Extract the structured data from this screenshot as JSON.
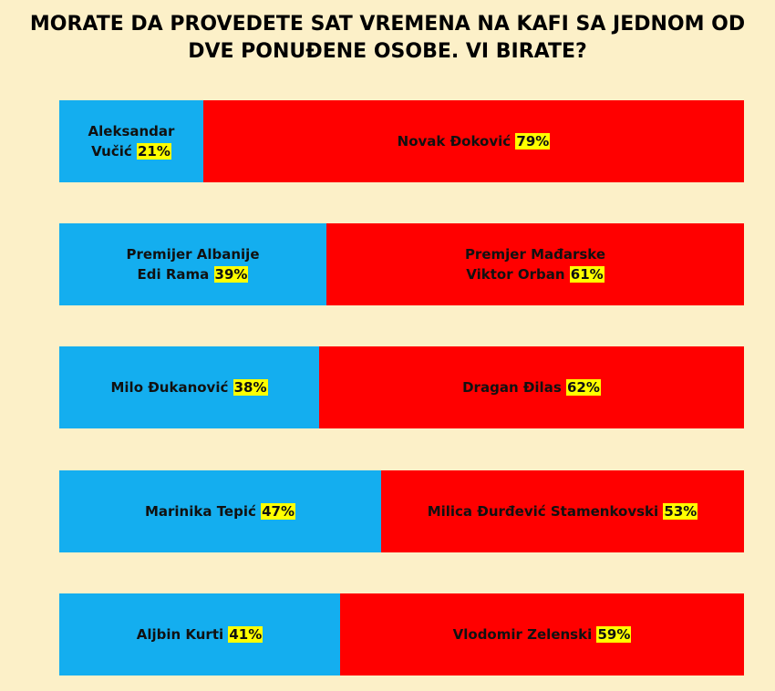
{
  "title": {
    "line1": "MORATE DA PROVEDETE SAT VREMENA NA KAFI SA JEDNOM OD",
    "line2": "DVE PONUĐENE OSOBE. VI BIRATE?"
  },
  "colors": {
    "background": "#fcf0c8",
    "left_bar": "#14aeef",
    "right_bar": "#ff0000",
    "percent_highlight": "#ffff00"
  },
  "chart_data": {
    "type": "bar",
    "orientation": "horizontal",
    "stacked": true,
    "normalized_to": 100,
    "title": "MORATE DA PROVEDETE SAT VREMENA NA KAFI SA JEDNOM OD DVE PONUĐENE OSOBE. VI BIRATE?",
    "rows": [
      {
        "left": {
          "name_lines": [
            "Aleksandar",
            "Vučić"
          ],
          "value": 21,
          "label": "21%"
        },
        "right": {
          "name_lines": [
            "Novak Đoković"
          ],
          "value": 79,
          "label": "79%"
        }
      },
      {
        "left": {
          "name_lines": [
            "Premijer Albanije",
            "Edi Rama"
          ],
          "value": 39,
          "label": "39%"
        },
        "right": {
          "name_lines": [
            "Premjer Mađarske",
            "Viktor Orban"
          ],
          "value": 61,
          "label": "61%"
        }
      },
      {
        "left": {
          "name_lines": [
            "Milo Đukanović"
          ],
          "value": 38,
          "label": "38%"
        },
        "right": {
          "name_lines": [
            "Dragan Đilas"
          ],
          "value": 62,
          "label": "62%"
        }
      },
      {
        "left": {
          "name_lines": [
            "Marinika Tepić"
          ],
          "value": 47,
          "label": "47%"
        },
        "right": {
          "name_lines": [
            "Milica Đurđević Stamenkovski"
          ],
          "value": 53,
          "label": "53%"
        }
      },
      {
        "left": {
          "name_lines": [
            "Aljbin Kurti"
          ],
          "value": 41,
          "label": "41%"
        },
        "right": {
          "name_lines": [
            "Vlodomir Zelenski"
          ],
          "value": 59,
          "label": "59%"
        }
      }
    ]
  }
}
